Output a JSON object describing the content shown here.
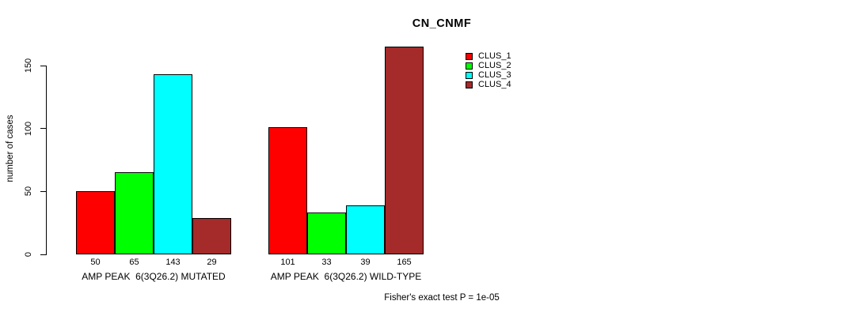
{
  "chart_data": {
    "type": "bar",
    "title": "CN_CNMF",
    "ylabel": "number of cases",
    "xlabel": "",
    "ylim": [
      0,
      168
    ],
    "yticks": [
      0,
      50,
      100,
      150
    ],
    "grid": false,
    "legend_position": "inside-top-right",
    "categories": [
      "AMP PEAK  6(3Q26.2) MUTATED",
      "AMP PEAK  6(3Q26.2) WILD-TYPE"
    ],
    "series": [
      {
        "name": "CLUS_1",
        "color": "#ff0000",
        "values": [
          50,
          101
        ]
      },
      {
        "name": "CLUS_2",
        "color": "#00ff00",
        "values": [
          65,
          33
        ]
      },
      {
        "name": "CLUS_3",
        "color": "#00ffff",
        "values": [
          143,
          39
        ]
      },
      {
        "name": "CLUS_4",
        "color": "#a52a2a",
        "values": [
          29,
          165
        ]
      }
    ],
    "bar_value_labels": [
      [
        50,
        65,
        143,
        29
      ],
      [
        101,
        33,
        39,
        165
      ]
    ],
    "footnote": "Fisher's exact test P = 1e-05"
  },
  "colors": {
    "background": "#ffffff",
    "axis": "#000000",
    "text": "#000000"
  }
}
